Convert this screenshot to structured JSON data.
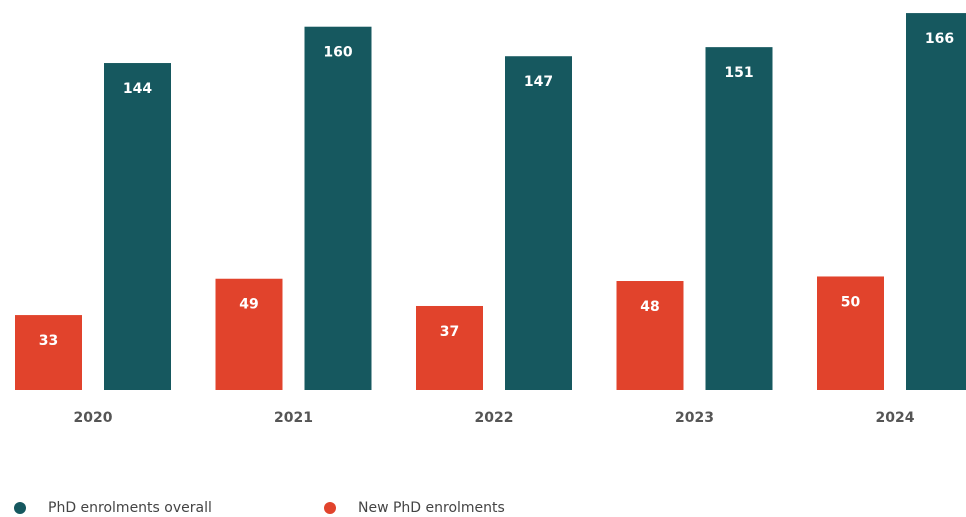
{
  "chart_data": {
    "type": "bar",
    "categories": [
      "2020",
      "2021",
      "2022",
      "2023",
      "2024"
    ],
    "series": [
      {
        "name": "PhD enrolments overall",
        "color": "#16585f",
        "values": [
          144,
          160,
          147,
          151,
          166
        ]
      },
      {
        "name": "New PhD enrolments",
        "color": "#e1432c",
        "values": [
          33,
          49,
          37,
          48,
          50
        ]
      }
    ],
    "ylim": [
      0,
      170
    ]
  }
}
